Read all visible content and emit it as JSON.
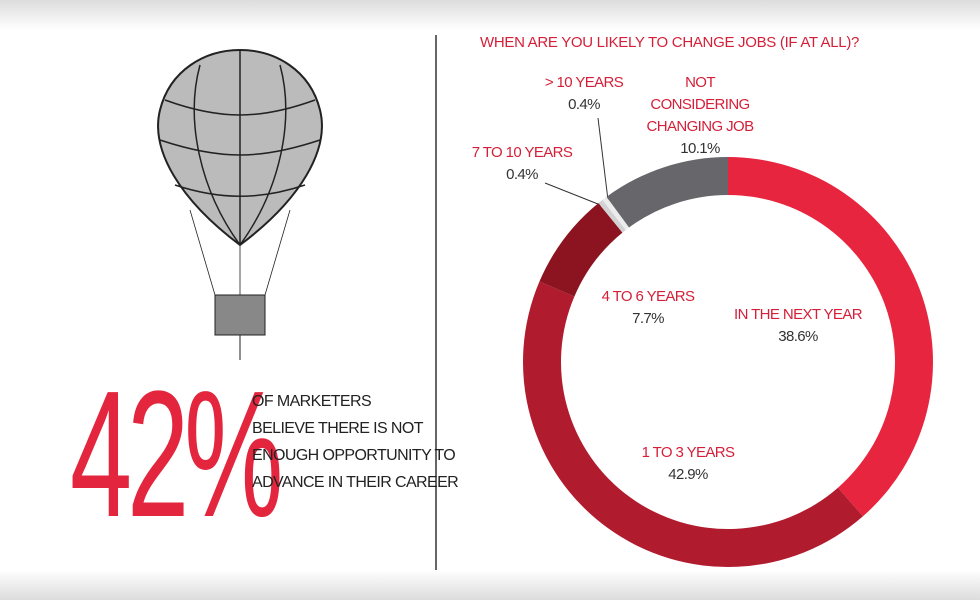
{
  "headline": {
    "figure": "42%",
    "lines": [
      "OF MARKETERS",
      "BELIEVE THERE IS NOT",
      "ENOUGH OPPORTUNITY TO",
      "ADVANCE IN THEIR CAREER"
    ]
  },
  "chart_data": {
    "type": "donut",
    "title": "WHEN ARE YOU LIKELY TO CHANGE JOBS (IF AT ALL)?",
    "categories": [
      "IN THE NEXT YEAR",
      "1 TO 3 YEARS",
      "4 TO 6 YEARS",
      "7 TO 10 YEARS",
      "> 10 YEARS",
      "NOT CONSIDERING CHANGING JOB"
    ],
    "values": [
      38.6,
      42.9,
      7.7,
      0.4,
      0.4,
      10.1
    ],
    "value_labels": [
      "38.6%",
      "42.9%",
      "7.7%",
      "0.4%",
      "0.4%",
      "10.1%"
    ],
    "colors": [
      "#e8253f",
      "#b11b2e",
      "#8c1320",
      "#d2d2d4",
      "#ececec",
      "#66666b"
    ]
  }
}
